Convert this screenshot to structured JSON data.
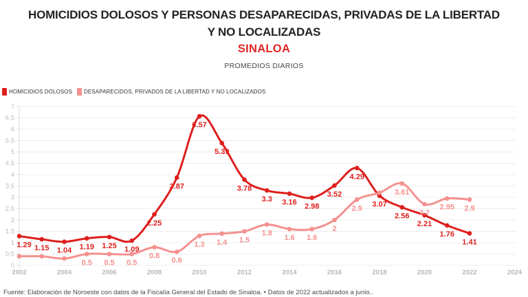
{
  "header": {
    "title": "HOMICIDIOS DOLOSOS Y PERSONAS DESAPARECIDAS, PRIVADAS DE LA LIBERTAD Y NO LOCALIZADAS",
    "subtitle": "SINALOA",
    "kicker": "PROMEDIOS DIARIOS"
  },
  "legend": {
    "items": [
      {
        "label": "HOMICIDIOS DOLOSOS",
        "color": "#dd1f1d"
      },
      {
        "label": "DESAPARECIDOS, PRIVADOS DE LA LIBERTAD Y NO LOCALIZADOS",
        "color": "#f5918f"
      }
    ]
  },
  "footer": {
    "source": "Fuente: Elaboración de Noroeste con datos de la Fiscalía General del Estado de Sinaloa. • Datos de 2022 actualizados a junio.."
  },
  "colors": {
    "accent_red": "#dd1f1d",
    "accent_pink": "#f5918f",
    "title_text": "#222222",
    "subtitle_red": "#e52628",
    "axis_text": "#b5b5b5",
    "grid_line": "#ededed",
    "footer_text": "#4a4a4a"
  },
  "chart_data": {
    "type": "line",
    "title": "HOMICIDIOS DOLOSOS Y PERSONAS DESAPARECIDAS, PRIVADAS DE LA LIBERTAD Y NO LOCALIZADAS — SINALOA",
    "subtitle": "PROMEDIOS DIARIOS",
    "xlabel": "",
    "ylabel": "",
    "grid": true,
    "legend_position": "top-left",
    "ylim": [
      0,
      7
    ],
    "y_tick_step": 0.5,
    "x": [
      2002,
      2003,
      2004,
      2005,
      2006,
      2007,
      2008,
      2009,
      2010,
      2011,
      2012,
      2013,
      2014,
      2015,
      2016,
      2017,
      2018,
      2019,
      2020,
      2021,
      2022
    ],
    "x_axis_ticks": [
      2002,
      2004,
      2006,
      2008,
      2010,
      2012,
      2014,
      2016,
      2018,
      2020,
      2022,
      2024
    ],
    "series": [
      {
        "name": "HOMICIDIOS DOLOSOS",
        "color": "#dd1f1d",
        "values": [
          1.29,
          1.15,
          1.04,
          1.19,
          1.25,
          1.09,
          2.25,
          3.87,
          6.57,
          5.39,
          3.78,
          3.3,
          3.16,
          2.98,
          3.52,
          4.29,
          3.07,
          2.56,
          2.21,
          1.76,
          1.41
        ],
        "labels": [
          "1.29",
          "1.15",
          "1.04",
          "1.19",
          "1.25",
          "1.09",
          "2.25",
          "3.87",
          "6.57",
          "5.39",
          "3.78",
          "3.3",
          "3.16",
          "2.98",
          "3.52",
          "4.29",
          "3.07",
          "2.56",
          "2.21",
          "1.76",
          "1.41"
        ]
      },
      {
        "name": "DESAPARECIDOS, PRIVADOS DE LA LIBERTAD Y NO LOCALIZADOS",
        "color": "#f5918f",
        "values": [
          0.4,
          0.4,
          0.3,
          0.5,
          0.5,
          0.5,
          0.8,
          0.6,
          1.3,
          1.4,
          1.5,
          1.8,
          1.6,
          1.6,
          2,
          2.9,
          3.2,
          3.61,
          2.7,
          2.95,
          2.9
        ],
        "labels": [
          null,
          null,
          null,
          "0.5",
          "0.5",
          "0.5",
          "0.8",
          "0.6",
          "1.3",
          "1.4",
          "1.5",
          "1.8",
          "1.6",
          "1.6",
          "2",
          "2.9",
          null,
          "3.61",
          "2.7",
          "2.95",
          "2.9"
        ]
      }
    ]
  }
}
